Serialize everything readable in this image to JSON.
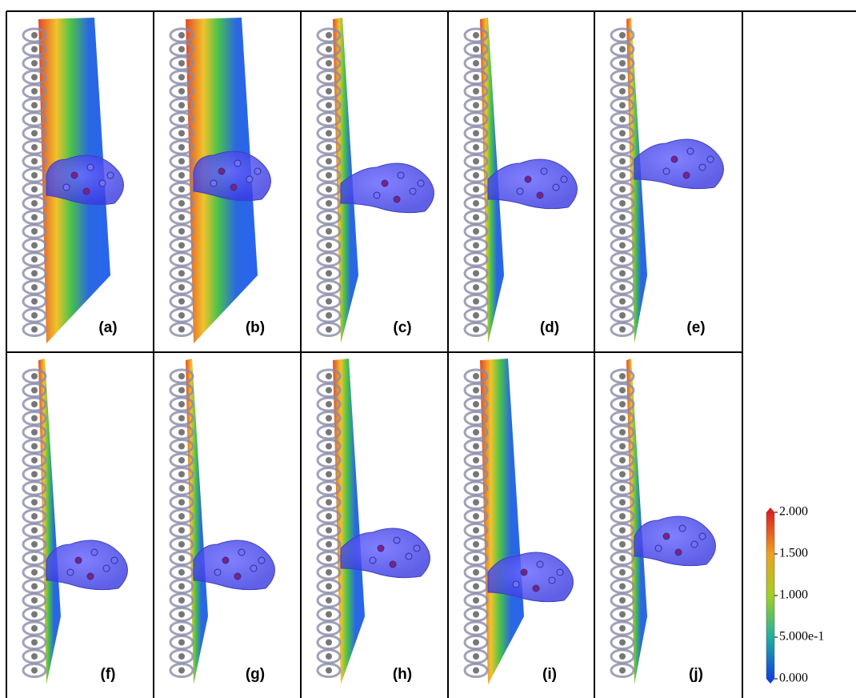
{
  "panels": [
    "(a)",
    "(b)",
    "(c)",
    "(d)",
    "(e)",
    "(f)",
    "(g)",
    "(h)",
    "(i)",
    "(j)"
  ],
  "colorbar": {
    "range": [
      0,
      2
    ],
    "ticks": [
      {
        "value": 2,
        "label": "2.000"
      },
      {
        "value": 1.5,
        "label": "1.500"
      },
      {
        "value": 1,
        "label": "1.000"
      },
      {
        "value": 0.5,
        "label": "5.000e-1"
      },
      {
        "value": 0,
        "label": "0.000"
      }
    ]
  }
}
